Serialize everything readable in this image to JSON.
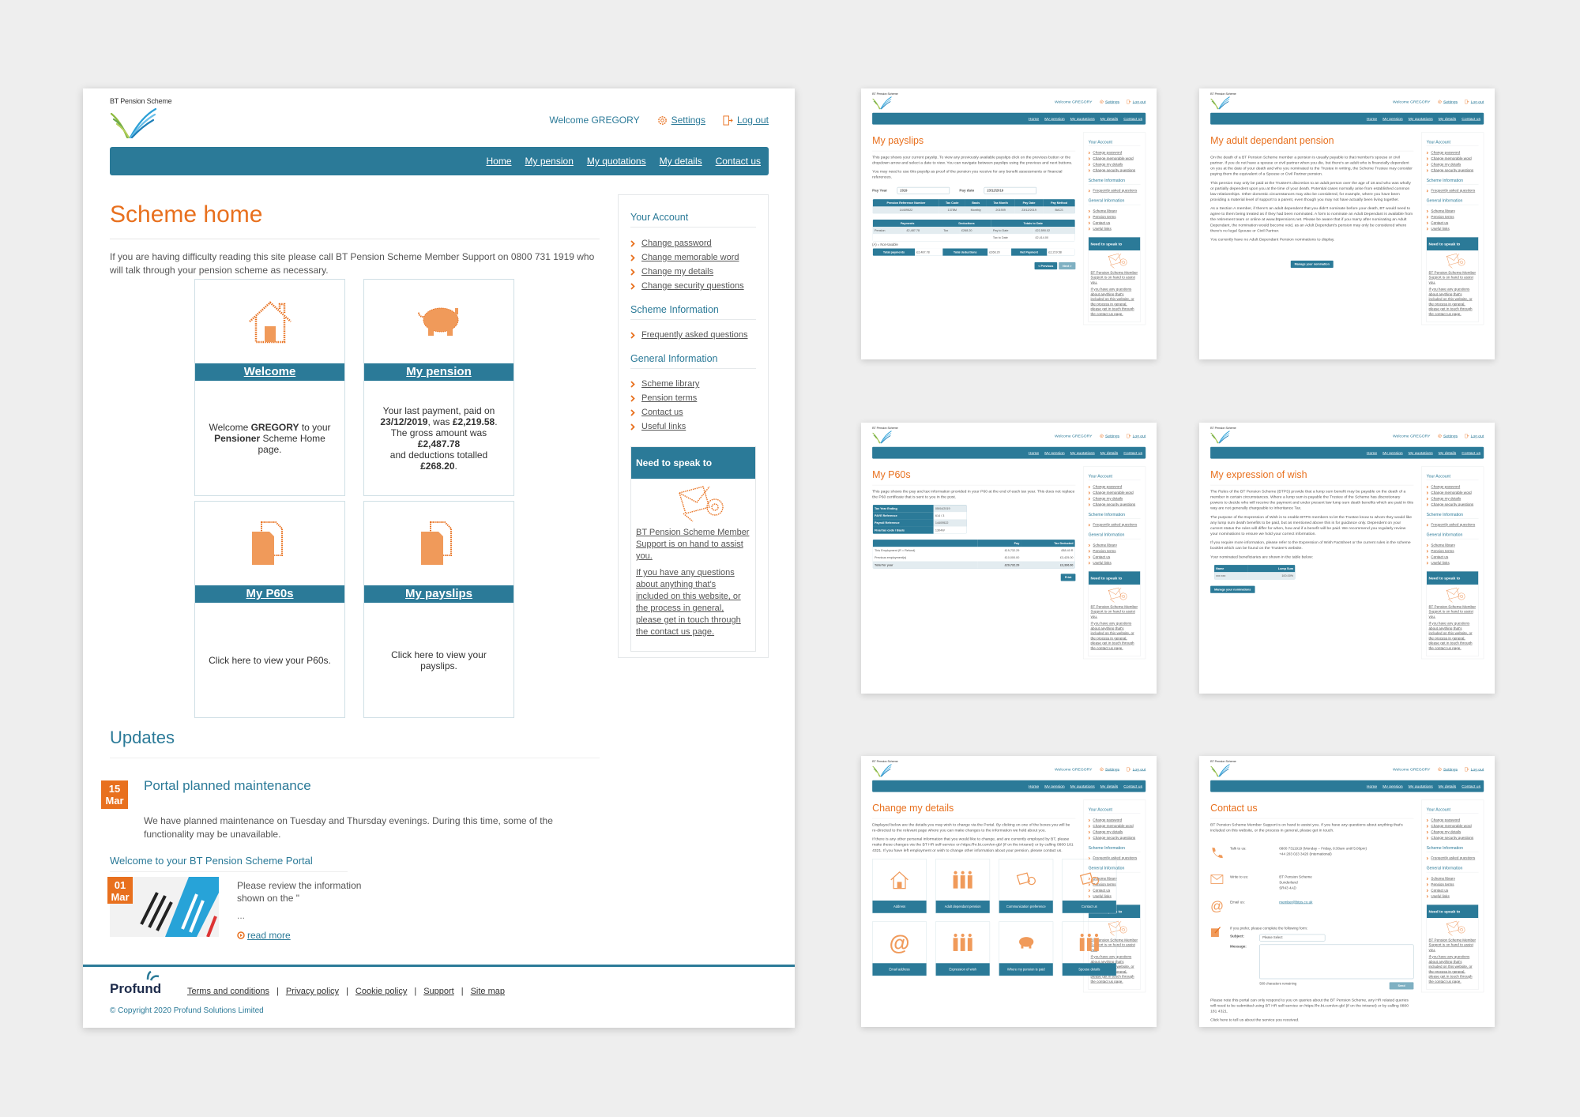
{
  "site": {
    "brand": "BT Pension Scheme",
    "welcome": "Welcome GREGORY",
    "settings": "Settings",
    "logout": "Log out",
    "nav": [
      "Home",
      "My pension",
      "My quotations",
      "My details",
      "Contact us"
    ]
  },
  "sidebar": {
    "your_account": {
      "heading": "Your Account",
      "items": [
        "Change password",
        "Change memorable word",
        "Change my details",
        "Change security questions"
      ]
    },
    "scheme_info": {
      "heading": "Scheme Information",
      "items": [
        "Frequently asked questions"
      ]
    },
    "general_info": {
      "heading": "General Information",
      "items": [
        "Scheme library",
        "Pension terms",
        "Contact us",
        "Useful links"
      ]
    },
    "speak": {
      "heading": "Need to speak to someone?",
      "p1": "BT Pension Scheme Member Support is on hand to assist you.",
      "p2": "If you have any questions about anything that's included on this website, or the process in general, please get in touch through the contact us page."
    }
  },
  "home": {
    "title": "Scheme home",
    "intro": "If you are having difficulty reading this site please call BT Pension Scheme Member Support on 0800 731 1919 who will talk through your pension scheme as necessary.",
    "tiles": [
      {
        "label": "Welcome",
        "parts": [
          "Welcome ",
          "GREGORY",
          " to your ",
          "Pensioner",
          " Scheme Home page."
        ]
      },
      {
        "label": "My pension",
        "parts": [
          "Your last payment, paid on ",
          "23/12/2019",
          ", was ",
          "£2,219.58",
          ". The gross amount was ",
          "£2,487.78",
          " and deductions totalled ",
          "£268.20",
          "."
        ]
      },
      {
        "label": "My P60s",
        "text": "Click here to view your P60s."
      },
      {
        "label": "My payslips",
        "text": "Click here to view your payslips."
      }
    ],
    "updates": {
      "heading": "Updates",
      "item1": {
        "day": "15",
        "month": "Mar",
        "title": "Portal planned maintenance",
        "text": "We have planned maintenance on Tuesday and Thursday evenings. During this time, some of the functionality may be unavailable."
      },
      "item2": {
        "heading": "Welcome to your BT Pension Scheme Portal",
        "day": "01",
        "month": "Mar",
        "text": "Please review the information shown on the \"",
        "ellipsis": "...",
        "read_more": "read more"
      }
    }
  },
  "footer": {
    "logo_text": "Profund",
    "links": [
      "Terms and conditions",
      "Privacy policy",
      "Cookie policy",
      "Support",
      "Site map"
    ],
    "copyright": "© Copyright 2020 Profund Solutions Limited"
  },
  "thumbs": {
    "payslips": {
      "title": "My payslips",
      "p1": "This page shows your current payslip. To view any previously available payslips click on the previous button or the dropdown arrow and select a date to view. You can navigate between payslips using the previous and next buttons.",
      "p2": "You may need to use this payslip as proof of the pension you receive for any benefit assessments or financial references.",
      "pay_year_label": "Pay Year",
      "pay_year": "2019",
      "pay_date_label": "Pay date",
      "pay_date": "23/12/2019",
      "ref_headers": [
        "Pension Reference Number",
        "Tax Code",
        "Basis",
        "Tax Month",
        "Pay Date",
        "Pay Method"
      ],
      "ref_row": [
        "14409522",
        "1378M",
        "Monthly",
        "201909",
        "23/12/2019",
        "BACS"
      ],
      "pd_headers": [
        "Payments",
        "Deductions",
        "Totals to Date"
      ],
      "pd_row1": [
        "Pension",
        "£2,487.78",
        "Tax",
        "£268.20",
        "Pay to Date",
        "£22,590.02"
      ],
      "pd_row2": [
        "Tax to Date",
        "£2,414.00"
      ],
      "note": "(A) = Non-taxable",
      "totals": [
        "Total payments",
        "£2,487.78",
        "Total deductions",
        "£268.20",
        "Net Payment",
        "£2,219.58"
      ],
      "prev": "< Previous",
      "next": "Next >"
    },
    "dependant": {
      "title": "My adult dependant pension",
      "p1": "On the death of a BT Pension Scheme member a pension is usually payable to that member's spouse or civil partner. If you do not have a spouse or civil partner when you die, but there's an adult who is financially dependent on you at the date of your death and who you nominated to the Trustee in writing, the Scheme Trustee may consider paying them the equivalent of a Spouse or Civil Partner pension.",
      "p2": "This pension may only be paid at the Trustee's discretion to an adult person over the age of 18 and who was wholly or partially dependent upon you at the time of your death. Potential cases normally arise from established common law relationships. Other domestic circumstances may also be considered, for example, where you have been providing a material level of support to a parent, even though you may not have actually been living together.",
      "p3": "As a Section A member, if there's an adult dependent that you didn't nominate before your death, BT would need to agree to them being treated as if they had been nominated. A form to nominate an Adult Dependant is available from the retirement team or online at www.btpensions.net. Please be aware that if you marry after nominating an Adult Dependant, the nomination would become void, as an Adult Dependant's pension may only be considered where there's no legal Spouse or Civil Partner.",
      "p4": "You currently have no Adult Dependant Pension nominations to display.",
      "button": "Manage your nomination"
    },
    "p60s": {
      "title": "My P60s",
      "p1": "This page shows the pay and tax information provided in your P60 at the end of each tax year. This does not replace the P60 certificate that is sent to you in the post.",
      "info": [
        [
          "Tax Year Ending",
          "05/04/2019"
        ],
        [
          "PAYE Reference",
          "614 / 3"
        ],
        [
          "Payroll Reference",
          "14409522"
        ],
        [
          "Final tax code / Basis",
          "1304W"
        ]
      ],
      "headers": [
        "",
        "Pay",
        "Tax Deducted"
      ],
      "rows": [
        [
          "This Employment (R = Refund)",
          "£19,732.29",
          "£88.40 R"
        ],
        [
          "Previous employment(s)",
          "£10,000.00",
          "£3,425.00"
        ],
        [
          "Total for year",
          "£29,732.29",
          "£3,336.60"
        ]
      ],
      "print": "Print"
    },
    "wish": {
      "title": "My expression of wish",
      "p1": "The Rules of the BT Pension Scheme (BTPS) provide that a lump sum benefit may be payable on the death of a member in certain circumstances. Where a lump sum is payable the Trustee of the Scheme has discretionary powers to decide who will receive the payment and under present law lump sum death benefits which are paid in this way are not generally chargeable to Inheritance Tax.",
      "p2": "The purpose of the Expression of Wish is to enable BTPS members to let the Trustee know to whom they would like any lump sum death benefits to be paid, but as mentioned above this is for guidance only. Dependent on your current status the rules will differ for when, how and if a benefit will be paid. We recommend you regularly review your nominations to ensure we hold your correct information.",
      "p3": "If you require more information, please refer to the Expression of Wish Factsheet or the current rules in the scheme booklet which can be found on the Trustee's website.",
      "p4": "Your nominated beneficiaries are shown in the table below:",
      "headers": [
        "Name",
        "Lump Sum"
      ],
      "row": [
        "xxx xxx",
        "100.00%"
      ],
      "button": "Manage your nominations"
    },
    "details": {
      "title": "Change my details",
      "p1": "Displayed below are the details you may wish to change via the Portal. By clicking on one of the boxes you will be re-directed to the relevant page where you can make changes to the information we hold about you.",
      "p2": "If there is any other personal information that you would like to change, and are currently employed by BT, please make these changes via the BT HR self-service on https://hr.bt.com/en-gb/ (if on the intranet) or by calling 0800 181 4321. If you have left employment or wish to change other information about your pension, please contact us.",
      "tiles": [
        "Address",
        "Adult dependant pension",
        "Communication preference",
        "Contact us",
        "Email address",
        "Expression of wish",
        "Where my pension is paid",
        "Spouse details"
      ]
    },
    "contact": {
      "title": "Contact us",
      "p1": "BT Pension Scheme Member Support is on hand to assist you. If you have any questions about anything that's included on this website, or the process in general, please get in touch.",
      "talk_label": "Talk to us:",
      "talk": [
        "0800 7311919 (Monday – Friday, 8:30am until 5:00pm)",
        "+44 203 023 3420 (International)"
      ],
      "write_label": "Write to us:",
      "write": [
        "BT Pension Scheme",
        "Sunderland",
        "SR43 4AD"
      ],
      "email_label": "Email us:",
      "email": "member@btps.co.uk",
      "form_intro": "If you prefer, please complete the following form:",
      "subject_label": "Subject:",
      "subject_value": "Please Select",
      "message_label": "Message:",
      "remaining": "500 characters remaining",
      "send": "Send",
      "note": "Please note this portal can only respond to you on queries about the BT Pension Scheme, any HR related queries will need to be submitted using BT HR self-service on https://hr.bt.com/en-gb/ (if on the intranet) or by calling 0800 181 4321.",
      "feedback": "Click here to tell us about the service you received."
    }
  },
  "colors": {
    "teal": "#2b7a98",
    "orange": "#e8701e"
  }
}
